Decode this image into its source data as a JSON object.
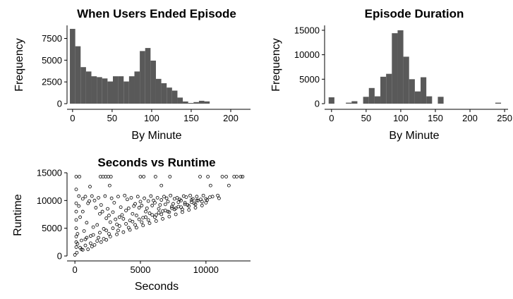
{
  "chart_data": [
    {
      "type": "bar",
      "title": "When Users Ended Episode",
      "xlabel": "By Minute",
      "ylabel": "Frequency",
      "xlim": [
        -7,
        225
      ],
      "ylim": [
        0,
        9000
      ],
      "xticks": [
        0,
        50,
        100,
        150,
        200
      ],
      "yticks": [
        0,
        2500,
        5000,
        7500
      ],
      "ytick_labels": [
        "0",
        "2500",
        "5000",
        "7500"
      ],
      "bin_width": 6.8,
      "bin_starts": [
        -3.4,
        3.4,
        10.2,
        17.0,
        23.8,
        30.6,
        37.4,
        44.2,
        51.0,
        57.8,
        64.6,
        71.4,
        78.2,
        85.0,
        91.8,
        98.6,
        105.4,
        112.2,
        119.0,
        125.8,
        132.6,
        139.4,
        146.2,
        153.0,
        159.8,
        166.6
      ],
      "values": [
        8600,
        6600,
        4200,
        3700,
        3150,
        3050,
        2900,
        2550,
        3150,
        3150,
        2550,
        3150,
        3700,
        6050,
        6400,
        4950,
        2850,
        2350,
        1850,
        1500,
        700,
        250,
        80,
        180,
        330,
        260
      ],
      "bar_color": "#595959"
    },
    {
      "type": "bar",
      "title": "Episode Duration",
      "xlabel": "By Minute",
      "ylabel": "Frequency",
      "xlim": [
        -10,
        255
      ],
      "ylim": [
        0,
        16000
      ],
      "xticks": [
        0,
        50,
        100,
        150,
        200,
        250
      ],
      "yticks": [
        0,
        5000,
        10000,
        15000
      ],
      "ytick_labels": [
        "0",
        "5000",
        "10000",
        "15000"
      ],
      "bin_width": 8.3,
      "bin_starts": [
        -4.15,
        20.75,
        29.05,
        45.65,
        53.95,
        62.25,
        70.55,
        78.85,
        87.15,
        95.45,
        103.75,
        112.05,
        120.35,
        128.65,
        136.95,
        153.55,
        236.55
      ],
      "values": [
        1300,
        200,
        500,
        1400,
        3200,
        1500,
        5500,
        6100,
        14400,
        15000,
        9600,
        5000,
        2500,
        5400,
        1500,
        1400,
        200
      ],
      "bar_color": "#595959"
    },
    {
      "type": "scatter",
      "title": "Seconds vs Runtime",
      "xlabel": "Seconds",
      "ylabel": "Runtime",
      "xlim": [
        -600,
        13400
      ],
      "ylim": [
        0,
        15000
      ],
      "xticks": [
        0,
        5000,
        10000
      ],
      "yticks": [
        0,
        5000,
        10000,
        15000
      ],
      "ytick_labels": [
        "0",
        "5000",
        "10000",
        "15000"
      ],
      "point_color": "#000000",
      "points": [
        [
          0,
          200
        ],
        [
          150,
          600
        ],
        [
          100,
          14300
        ],
        [
          350,
          14300
        ],
        [
          1150,
          12500
        ],
        [
          1950,
          14300
        ],
        [
          2150,
          14300
        ],
        [
          2350,
          14300
        ],
        [
          2550,
          14300
        ],
        [
          2750,
          14300
        ],
        [
          2650,
          12700
        ],
        [
          5000,
          14300
        ],
        [
          5250,
          14300
        ],
        [
          6150,
          14300
        ],
        [
          6600,
          12700
        ],
        [
          7250,
          14300
        ],
        [
          9550,
          14300
        ],
        [
          10150,
          14300
        ],
        [
          10350,
          12700
        ],
        [
          11250,
          14300
        ],
        [
          11550,
          14300
        ],
        [
          11750,
          12700
        ],
        [
          12150,
          14300
        ],
        [
          12350,
          14300
        ],
        [
          12650,
          14300
        ],
        [
          12800,
          14300
        ],
        [
          10900,
          10900
        ],
        [
          11000,
          10400
        ],
        [
          10300,
          10600
        ],
        [
          10000,
          10300
        ],
        [
          9800,
          10900
        ],
        [
          9300,
          10000
        ],
        [
          8900,
          9700
        ],
        [
          8400,
          9300
        ],
        [
          7900,
          8900
        ],
        [
          7400,
          8600
        ],
        [
          6900,
          8200
        ],
        [
          6400,
          7800
        ],
        [
          5900,
          7400
        ],
        [
          5400,
          7000
        ],
        [
          4900,
          6600
        ],
        [
          4400,
          6200
        ],
        [
          3900,
          5800
        ],
        [
          3400,
          5400
        ],
        [
          2900,
          5000
        ],
        [
          2400,
          4600
        ],
        [
          1900,
          4200
        ],
        [
          1400,
          3800
        ],
        [
          900,
          3300
        ],
        [
          500,
          2800
        ],
        [
          200,
          2200
        ],
        [
          100,
          1600
        ],
        [
          400,
          1500
        ],
        [
          800,
          1900
        ],
        [
          1200,
          2300
        ],
        [
          1700,
          2700
        ],
        [
          2200,
          3100
        ],
        [
          2700,
          3500
        ],
        [
          3200,
          3900
        ],
        [
          3700,
          4300
        ],
        [
          4200,
          4700
        ],
        [
          4700,
          5100
        ],
        [
          5200,
          5500
        ],
        [
          5700,
          5900
        ],
        [
          6200,
          6300
        ],
        [
          6700,
          6700
        ],
        [
          7200,
          7100
        ],
        [
          7700,
          7500
        ],
        [
          8200,
          7900
        ],
        [
          8700,
          8300
        ],
        [
          9200,
          8700
        ],
        [
          9700,
          9100
        ],
        [
          10000,
          9600
        ],
        [
          300,
          9000
        ],
        [
          600,
          8000
        ],
        [
          1000,
          9500
        ],
        [
          1500,
          10000
        ],
        [
          2000,
          9200
        ],
        [
          2500,
          8500
        ],
        [
          3000,
          9600
        ],
        [
          3500,
          8800
        ],
        [
          4000,
          10200
        ],
        [
          4500,
          9000
        ],
        [
          5000,
          9800
        ],
        [
          5500,
          8600
        ],
        [
          6000,
          10000
        ],
        [
          6500,
          9200
        ],
        [
          7000,
          10400
        ],
        [
          7500,
          9400
        ],
        [
          8000,
          10200
        ],
        [
          8500,
          10600
        ],
        [
          9000,
          10300
        ],
        [
          400,
          7000
        ],
        [
          900,
          6000
        ],
        [
          1400,
          5200
        ],
        [
          1900,
          7600
        ],
        [
          2400,
          6800
        ],
        [
          2900,
          7900
        ],
        [
          3400,
          7000
        ],
        [
          3900,
          8200
        ],
        [
          4400,
          7600
        ],
        [
          4900,
          8700
        ],
        [
          5400,
          8000
        ],
        [
          5900,
          9100
        ],
        [
          6400,
          8500
        ],
        [
          6900,
          9300
        ],
        [
          7400,
          8900
        ],
        [
          7900,
          9700
        ],
        [
          8400,
          9600
        ],
        [
          8900,
          10100
        ],
        [
          9400,
          10000
        ],
        [
          200,
          4000
        ],
        [
          700,
          4500
        ],
        [
          1200,
          3600
        ],
        [
          1700,
          5600
        ],
        [
          2200,
          4900
        ],
        [
          2700,
          6100
        ],
        [
          3200,
          5700
        ],
        [
          3700,
          6700
        ],
        [
          4200,
          6400
        ],
        [
          4700,
          7300
        ],
        [
          5200,
          6900
        ],
        [
          5700,
          7700
        ],
        [
          6200,
          7400
        ],
        [
          6700,
          8100
        ],
        [
          7200,
          7900
        ],
        [
          7700,
          8600
        ],
        [
          8200,
          8400
        ],
        [
          8700,
          9000
        ],
        [
          9200,
          9300
        ],
        [
          9700,
          9800
        ],
        [
          300,
          10800
        ],
        [
          800,
          10700
        ],
        [
          1300,
          10800
        ],
        [
          1800,
          10500
        ],
        [
          2300,
          10800
        ],
        [
          2800,
          10400
        ],
        [
          3300,
          10700
        ],
        [
          3800,
          10900
        ],
        [
          4300,
          10500
        ],
        [
          4800,
          10700
        ],
        [
          5300,
          10400
        ],
        [
          5800,
          10800
        ],
        [
          6300,
          10500
        ],
        [
          6800,
          10700
        ],
        [
          7300,
          10900
        ],
        [
          7800,
          10500
        ],
        [
          8300,
          10800
        ],
        [
          8800,
          10900
        ],
        [
          9300,
          10700
        ],
        [
          600,
          10300
        ],
        [
          1100,
          9900
        ],
        [
          1600,
          8700
        ],
        [
          2100,
          8000
        ],
        [
          2600,
          7300
        ],
        [
          3100,
          6600
        ],
        [
          3600,
          7400
        ],
        [
          4100,
          8600
        ],
        [
          4600,
          9400
        ],
        [
          5100,
          9100
        ],
        [
          5600,
          9900
        ],
        [
          6100,
          9600
        ],
        [
          6600,
          10100
        ],
        [
          7100,
          9800
        ],
        [
          7600,
          10300
        ],
        [
          8100,
          10000
        ],
        [
          100,
          9500
        ],
        [
          100,
          8000
        ],
        [
          100,
          6500
        ],
        [
          100,
          5000
        ],
        [
          100,
          3500
        ],
        [
          100,
          2500
        ],
        [
          100,
          12000
        ],
        [
          1300,
          1700
        ],
        [
          500,
          1200
        ],
        [
          800,
          3000
        ],
        [
          1800,
          3300
        ],
        [
          2600,
          4000
        ],
        [
          3300,
          4600
        ],
        [
          4100,
          5100
        ],
        [
          4600,
          5600
        ],
        [
          5100,
          6100
        ],
        [
          5600,
          6500
        ],
        [
          6100,
          7000
        ],
        [
          6600,
          7500
        ],
        [
          7100,
          8000
        ],
        [
          7600,
          8400
        ],
        [
          8100,
          8800
        ],
        [
          8600,
          9200
        ],
        [
          9100,
          9500
        ],
        [
          9600,
          10200
        ],
        [
          10100,
          10100
        ],
        [
          10500,
          10700
        ],
        [
          1000,
          1200
        ],
        [
          600,
          1100
        ],
        [
          1500,
          2000
        ],
        [
          2000,
          2500
        ],
        [
          2400,
          2900
        ]
      ]
    }
  ]
}
